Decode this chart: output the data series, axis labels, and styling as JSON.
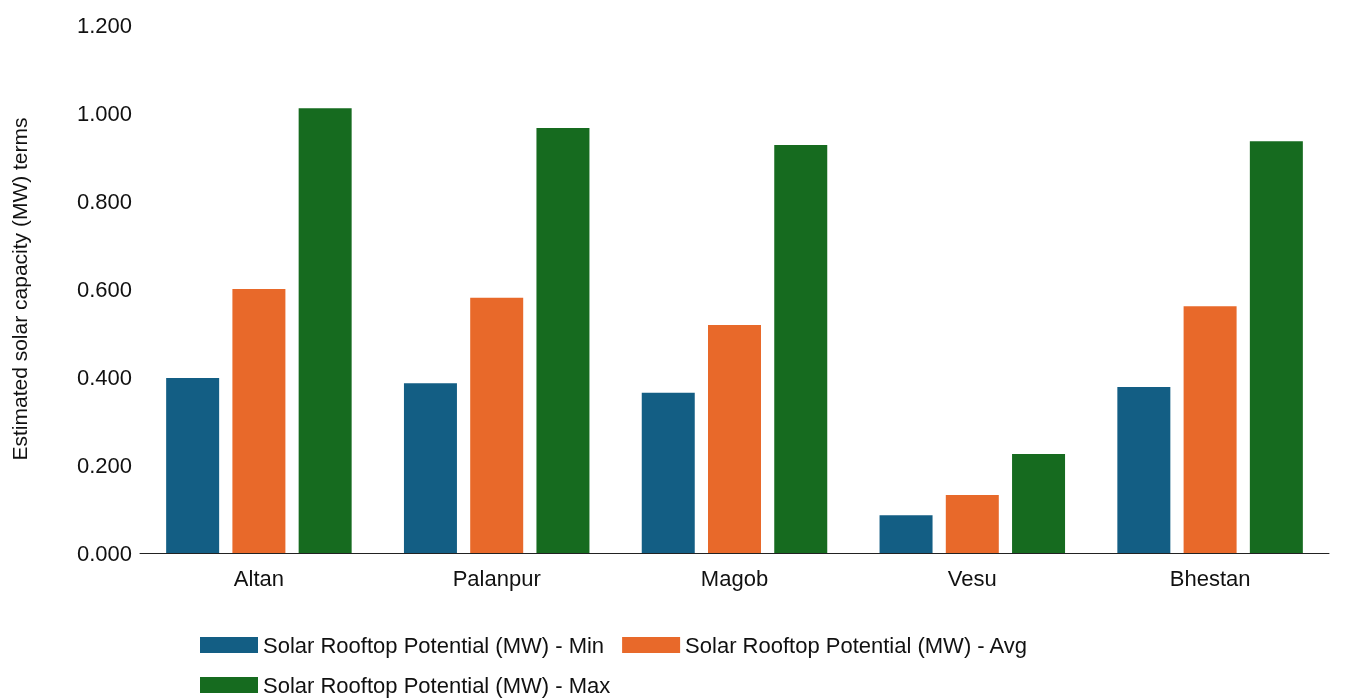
{
  "chart_data": {
    "type": "bar",
    "ylabel": "Estimated solar capacity (MW) terms",
    "categories": [
      "Altan",
      "Palanpur",
      "Magob",
      "Vesu",
      "Bhestan"
    ],
    "series": [
      {
        "name": "Solar Rooftop Potential (MW) - Min",
        "color": "#135e84",
        "values": [
          0.398,
          0.386,
          0.364,
          0.086,
          0.377
        ]
      },
      {
        "name": "Solar Rooftop Potential (MW) - Avg",
        "color": "#e8692a",
        "values": [
          0.6,
          0.58,
          0.518,
          0.132,
          0.561
        ]
      },
      {
        "name": "Solar Rooftop Potential (MW) - Max",
        "color": "#166b1f",
        "values": [
          1.011,
          0.966,
          0.927,
          0.225,
          0.936
        ]
      }
    ],
    "ylim": [
      0,
      1.2
    ],
    "yticks": [
      {
        "value": 0,
        "label": "0.000"
      },
      {
        "value": 0.2,
        "label": "0.200"
      },
      {
        "value": 0.4,
        "label": "0.400"
      },
      {
        "value": 0.6,
        "label": "0.600"
      },
      {
        "value": 0.8,
        "label": "0.800"
      },
      {
        "value": 1.0,
        "label": "1.000"
      },
      {
        "value": 1.2,
        "label": "1.200"
      }
    ],
    "grid": false,
    "legend": "bottom"
  }
}
